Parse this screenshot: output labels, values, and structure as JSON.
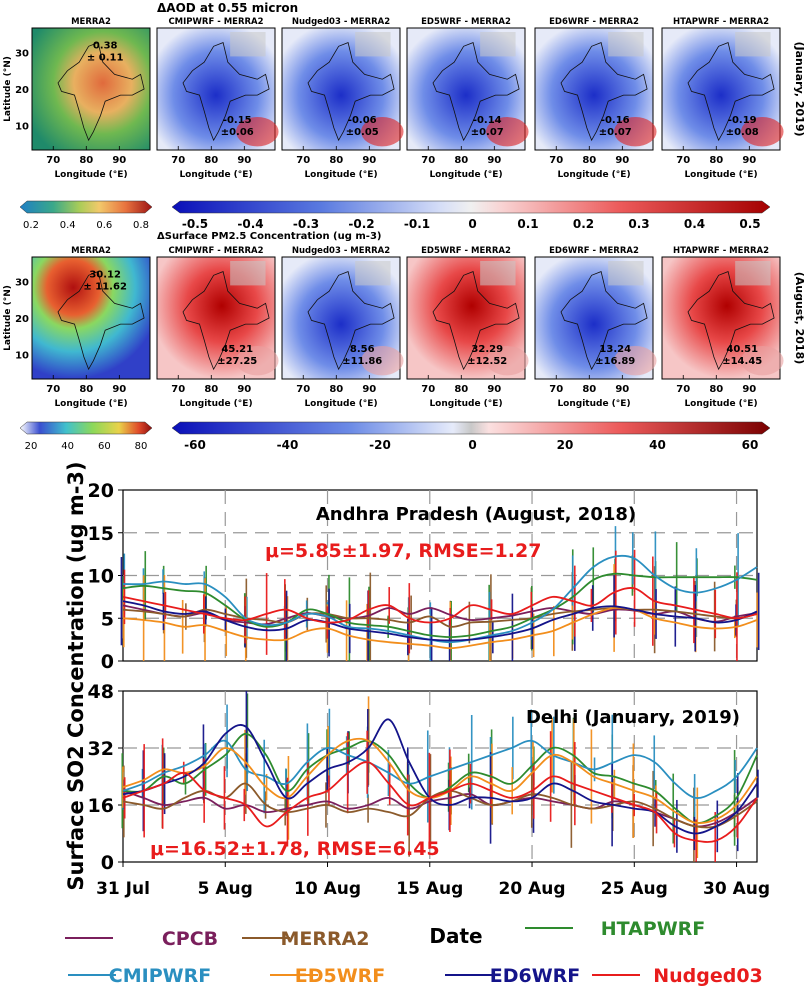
{
  "colors": {
    "CPCB": "#7a1f5c",
    "MERRA2": "#8b5a2b",
    "HTAPWRF": "#2e8b2e",
    "CMIPWRF": "#2a8fc0",
    "ED5WRF": "#f28e1c",
    "ED6WRF": "#14148a",
    "Nudged03": "#e81c1c",
    "annotation": "#e81c1c",
    "grid": "#999999"
  },
  "map_rows": [
    {
      "id": "aod",
      "main_title": "ΔAOD at 0.55 micron",
      "side_label": "(January, 2019)",
      "panel_titles": [
        "MERRA2",
        "CMIPWRF - MERRA2",
        "Nudged03 - MERRA2",
        "ED5WRF - MERRA2",
        "ED6WRF - MERRA2",
        "HTAPWRF - MERRA2"
      ],
      "stats_mean": [
        "0.38",
        "-0.15",
        "-0.06",
        "-0.14",
        "-0.16",
        "-0.19"
      ],
      "stats_sd": [
        "± 0.11",
        "±0.06",
        "±0.05",
        "±0.07",
        "±0.07",
        "±0.08"
      ],
      "ytick_labels": [
        "30",
        "20",
        "10"
      ],
      "xtick_labels": [
        "70",
        "80",
        "90"
      ],
      "ylabel": "Latitude (°N)",
      "xlabel": "Longitude (°E)",
      "cbar_left_ticks": [
        "0.2",
        "0.4",
        "0.6",
        "0.8"
      ],
      "cbar_right_ticks": [
        "-0.5",
        "-0.4",
        "-0.3",
        "-0.2",
        "-0.1",
        "0",
        "0.1",
        "0.2",
        "0.3",
        "0.4",
        "0.5"
      ]
    },
    {
      "id": "pm25",
      "main_title": "ΔSurface PM2.5 Concentration (ug m-3)",
      "side_label": "(August, 2018)",
      "panel_titles": [
        "MERRA2",
        "CMIPWRF - MERRA2",
        "Nudged03 - MERRA2",
        "ED5WRF - MERRA2",
        "ED6WRF - MERRA2",
        "HTAPWRF - MERRA2"
      ],
      "stats_mean": [
        "30.12",
        "45.21",
        "8.56",
        "32.29",
        "13.24",
        "40.51"
      ],
      "stats_sd": [
        "± 11.62",
        "±27.25",
        "±11.86",
        "±12.52",
        "±16.89",
        "±14.45"
      ],
      "ytick_labels": [
        "30",
        "20",
        "10"
      ],
      "xtick_labels": [
        "70",
        "80",
        "90"
      ],
      "ylabel": "Latitude (°N)",
      "xlabel": "Longitude (°E)",
      "cbar_left_ticks": [
        "20",
        "40",
        "60",
        "80"
      ],
      "cbar_right_ticks": [
        "-60",
        "-40",
        "-20",
        "0",
        "20",
        "40",
        "60"
      ]
    }
  ],
  "chart_data": [
    {
      "type": "line",
      "title": "Andhra Pradesh (August, 2018)",
      "annotation": "μ=5.85±1.97, RMSE=1.27",
      "ylim": [
        0,
        20
      ],
      "yticks": [
        0,
        5,
        10,
        15,
        20
      ],
      "x": [
        0,
        1,
        2,
        3,
        4,
        5,
        6,
        7,
        8,
        9,
        10,
        11,
        12,
        13,
        14,
        15,
        16,
        17,
        18,
        19,
        20,
        21,
        22,
        23,
        24,
        25,
        26,
        27,
        28,
        29,
        30,
        31
      ],
      "series": [
        {
          "name": "CPCB",
          "values": [
            6.5,
            6.0,
            5.5,
            5.2,
            5.6,
            4.8,
            4.5,
            4.3,
            5.0,
            5.6,
            5.2,
            5.0,
            5.3,
            6.2,
            5.5,
            6.2,
            5.4,
            4.8,
            5.0,
            5.3,
            5.8,
            6.2,
            5.8,
            5.5,
            6.0,
            5.9,
            5.5,
            5.8,
            5.0,
            4.6,
            5.2,
            5.6
          ]
        },
        {
          "name": "MERRA2",
          "values": [
            6.0,
            5.8,
            5.5,
            5.2,
            6.0,
            5.5,
            5.0,
            4.8,
            4.5,
            5.5,
            5.5,
            5.0,
            5.0,
            4.8,
            4.5,
            5.2,
            4.0,
            4.5,
            4.6,
            4.8,
            5.0,
            5.5,
            5.8,
            6.0,
            6.2,
            6.0,
            6.0,
            5.8,
            5.5,
            5.2,
            5.0,
            5.5
          ]
        },
        {
          "name": "HTAPWRF",
          "values": [
            8.5,
            8.8,
            8.5,
            8.2,
            8.0,
            6.5,
            4.8,
            4.0,
            4.5,
            6.0,
            5.5,
            4.5,
            4.2,
            4.0,
            3.5,
            3.0,
            2.8,
            3.0,
            3.5,
            4.0,
            5.0,
            6.0,
            7.5,
            9.5,
            10.2,
            10.0,
            9.8,
            9.8,
            9.8,
            9.8,
            9.8,
            9.5
          ]
        },
        {
          "name": "CMIPWRF",
          "values": [
            9.0,
            9.0,
            9.3,
            9.0,
            9.0,
            7.5,
            5.0,
            4.2,
            4.5,
            5.5,
            5.2,
            4.0,
            3.8,
            3.5,
            3.0,
            2.5,
            2.2,
            2.5,
            3.0,
            3.5,
            4.5,
            6.0,
            8.5,
            11.0,
            12.2,
            12.0,
            10.0,
            8.5,
            8.0,
            8.5,
            9.5,
            11.0
          ]
        },
        {
          "name": "ED5WRF",
          "values": [
            5.0,
            4.8,
            4.5,
            4.0,
            4.2,
            3.5,
            2.8,
            2.5,
            2.5,
            3.5,
            3.8,
            3.0,
            2.5,
            2.2,
            2.0,
            1.8,
            1.5,
            1.8,
            2.2,
            2.5,
            3.0,
            3.5,
            4.5,
            5.5,
            6.2,
            6.0,
            5.0,
            4.5,
            4.0,
            3.8,
            4.0,
            4.8
          ]
        },
        {
          "name": "ED6WRF",
          "values": [
            7.0,
            6.5,
            5.8,
            5.5,
            5.8,
            4.8,
            4.0,
            3.6,
            3.8,
            4.8,
            4.5,
            3.8,
            3.5,
            3.2,
            2.8,
            2.5,
            2.4,
            2.5,
            2.8,
            3.2,
            3.8,
            4.8,
            5.5,
            6.2,
            6.4,
            6.0,
            5.5,
            5.2,
            5.0,
            4.5,
            4.8,
            5.8
          ]
        },
        {
          "name": "Nudged03",
          "values": [
            7.5,
            7.0,
            6.5,
            6.0,
            5.5,
            5.0,
            4.8,
            5.5,
            6.0,
            5.0,
            4.5,
            4.8,
            6.0,
            6.5,
            5.0,
            4.5,
            5.0,
            6.5,
            6.0,
            5.5,
            6.5,
            7.5,
            7.0,
            6.5,
            8.0,
            8.5,
            7.0,
            6.5,
            6.0,
            5.5,
            5.0,
            5.5
          ]
        }
      ]
    },
    {
      "type": "line",
      "title": "Delhi (January, 2019)",
      "annotation": "μ=16.52±1.78, RMSE=6.45",
      "ylim": [
        0,
        48
      ],
      "yticks": [
        0,
        16,
        32,
        48
      ],
      "xlabel": "Date",
      "ylabel": "Surface SO2 Concentration (ug m-3)",
      "xticks": [
        0,
        5,
        10,
        15,
        20,
        25,
        30
      ],
      "xtick_labels": [
        "31 Jul",
        "5 Aug",
        "10 Aug",
        "15 Aug",
        "20 Aug",
        "25 Aug",
        "30 Aug"
      ],
      "x": [
        0,
        1,
        2,
        3,
        4,
        5,
        6,
        7,
        8,
        9,
        10,
        11,
        12,
        13,
        14,
        15,
        16,
        17,
        18,
        19,
        20,
        21,
        22,
        23,
        24,
        25,
        26,
        27,
        28,
        29,
        30,
        31
      ],
      "series": [
        {
          "name": "CPCB",
          "values": [
            20,
            18,
            16,
            17,
            18,
            15,
            16,
            14,
            15,
            16,
            17,
            15,
            16,
            18,
            15,
            17,
            18,
            19,
            16,
            17,
            18,
            17,
            16,
            15,
            17,
            16,
            14,
            12,
            10,
            11,
            14,
            18
          ]
        },
        {
          "name": "MERRA2",
          "values": [
            17,
            16,
            15,
            18,
            20,
            18,
            22,
            16,
            14,
            15,
            16,
            14,
            15,
            14,
            13,
            18,
            20,
            18,
            16,
            17,
            19,
            18,
            16,
            15,
            16,
            17,
            15,
            12,
            10,
            10,
            13,
            17
          ]
        },
        {
          "name": "HTAPWRF",
          "values": [
            20,
            20,
            24,
            22,
            26,
            30,
            36,
            30,
            20,
            26,
            30,
            32,
            34,
            30,
            22,
            18,
            21,
            25,
            24,
            22,
            27,
            32,
            30,
            25,
            24,
            22,
            20,
            15,
            11,
            13,
            18,
            30
          ]
        },
        {
          "name": "CMIPWRF",
          "values": [
            20,
            22,
            25,
            27,
            30,
            34,
            26,
            24,
            22,
            28,
            32,
            30,
            28,
            25,
            22,
            24,
            26,
            28,
            30,
            32,
            34,
            30,
            28,
            26,
            28,
            30,
            28,
            22,
            18,
            20,
            24,
            32
          ]
        },
        {
          "name": "ED5WRF",
          "values": [
            21,
            23,
            26,
            25,
            27,
            32,
            28,
            21,
            18,
            24,
            30,
            34,
            34,
            28,
            20,
            18,
            20,
            24,
            22,
            20,
            25,
            30,
            28,
            24,
            22,
            20,
            18,
            14,
            11,
            12,
            16,
            24
          ]
        },
        {
          "name": "ED6WRF",
          "values": [
            19,
            20,
            22,
            24,
            28,
            36,
            38,
            28,
            18,
            22,
            26,
            28,
            32,
            40,
            28,
            18,
            16,
            18,
            18,
            17,
            18,
            22,
            20,
            17,
            16,
            15,
            14,
            10,
            8,
            10,
            14,
            22
          ]
        },
        {
          "name": "Nudged03",
          "values": [
            18,
            20,
            22,
            25,
            20,
            18,
            16,
            10,
            14,
            18,
            20,
            25,
            28,
            22,
            16,
            18,
            20,
            22,
            20,
            18,
            20,
            24,
            22,
            20,
            18,
            16,
            14,
            8,
            6,
            6,
            10,
            18
          ]
        }
      ]
    }
  ],
  "legend": [
    {
      "name": "CPCB",
      "label": "CPCB"
    },
    {
      "name": "MERRA2",
      "label": "MERRA2"
    },
    {
      "name": "HTAPWRF",
      "label": "HTAPWRF"
    },
    {
      "name": "CMIPWRF",
      "label": "CMIPWRF"
    },
    {
      "name": "ED5WRF",
      "label": "ED5WRF"
    },
    {
      "name": "ED6WRF",
      "label": "ED6WRF"
    },
    {
      "name": "Nudged03",
      "label": "Nudged03"
    }
  ]
}
